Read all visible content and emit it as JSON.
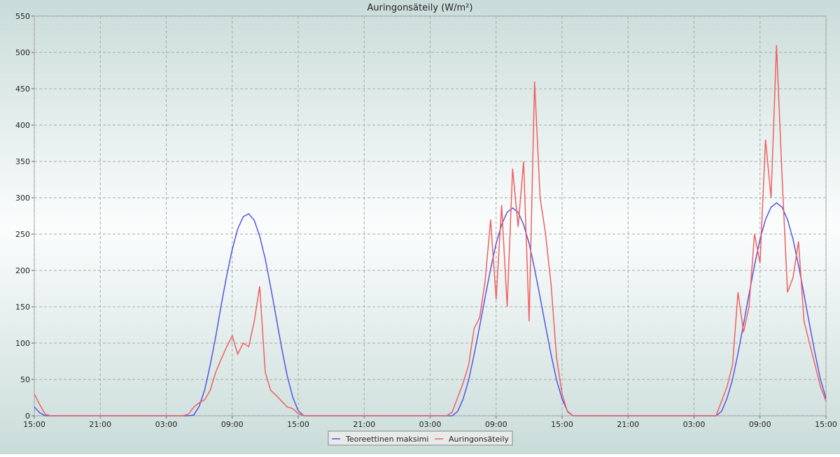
{
  "chart_data": {
    "type": "line",
    "title": "Auringonsäteily (W/m²)",
    "x": [
      0,
      0.5,
      1,
      1.5,
      2,
      2.5,
      3,
      3.5,
      4,
      4.5,
      5,
      5.5,
      6,
      6.5,
      7,
      7.5,
      8,
      8.5,
      9,
      9.5,
      10,
      10.5,
      11,
      11.5,
      12,
      12.5,
      13,
      13.5,
      14,
      14.5,
      15,
      15.5,
      16,
      16.5,
      17,
      17.5,
      18,
      18.5,
      19,
      19.5,
      20,
      20.5,
      21,
      21.5,
      22,
      22.5,
      23,
      23.5,
      24,
      24.5,
      25,
      25.5,
      26,
      26.5,
      27,
      27.5,
      28,
      28.5,
      29,
      29.5,
      30,
      30.5,
      31,
      31.5,
      32,
      32.5,
      33,
      33.5,
      34,
      34.5,
      35,
      35.5,
      36,
      36.5,
      37,
      37.5,
      38,
      38.5,
      39,
      39.5,
      40,
      40.5,
      41,
      41.5,
      42,
      42.5,
      43,
      43.5,
      44,
      44.5,
      45,
      45.5,
      46,
      46.5,
      47,
      47.5,
      48,
      48.5,
      49,
      49.5,
      50,
      50.5,
      51,
      51.5,
      52,
      52.5,
      53,
      53.5,
      54,
      54.5,
      55,
      55.5,
      56,
      56.5,
      57,
      57.5,
      58,
      58.5,
      59,
      59.5,
      60,
      60.5,
      61,
      61.5,
      62,
      62.5,
      63,
      63.5,
      64,
      64.5,
      65,
      65.5,
      66,
      66.5,
      67,
      67.5,
      68,
      68.5,
      69,
      69.5,
      70,
      70.5,
      71,
      71.5,
      72
    ],
    "series": [
      {
        "name": "Teoreettinen maksimi",
        "color": "#5555e0",
        "values": [
          12,
          4,
          0,
          0,
          0,
          0,
          0,
          0,
          0,
          0,
          0,
          0,
          0,
          0,
          0,
          0,
          0,
          0,
          0,
          0,
          0,
          0,
          0,
          0,
          0,
          0,
          0,
          0,
          0,
          1,
          13,
          36,
          70,
          109,
          152,
          193,
          229,
          257,
          274,
          278,
          269,
          247,
          216,
          177,
          135,
          93,
          55,
          26,
          7,
          0,
          0,
          0,
          0,
          0,
          0,
          0,
          0,
          0,
          0,
          0,
          0,
          0,
          0,
          0,
          0,
          0,
          0,
          0,
          0,
          0,
          0,
          0,
          0,
          0,
          0,
          0,
          0,
          6,
          23,
          49,
          84,
          123,
          163,
          202,
          237,
          263,
          280,
          286,
          280,
          263,
          237,
          202,
          163,
          123,
          84,
          49,
          23,
          6,
          0,
          0,
          0,
          0,
          0,
          0,
          0,
          0,
          0,
          0,
          0,
          0,
          0,
          0,
          0,
          0,
          0,
          0,
          0,
          0,
          0,
          0,
          0,
          0,
          0,
          0,
          0,
          6,
          24,
          50,
          86,
          126,
          167,
          207,
          243,
          270,
          287,
          293,
          287,
          270,
          243,
          207,
          167,
          126,
          86,
          50,
          24
        ]
      },
      {
        "name": "Auringonsäteily",
        "color": "#f06060",
        "values": [
          30,
          15,
          2,
          0,
          0,
          0,
          0,
          0,
          0,
          0,
          0,
          0,
          0,
          0,
          0,
          0,
          0,
          0,
          0,
          0,
          0,
          0,
          0,
          0,
          0,
          0,
          0,
          0,
          2,
          12,
          18,
          22,
          35,
          60,
          78,
          95,
          110,
          85,
          100,
          95,
          130,
          178,
          60,
          35,
          28,
          20,
          12,
          10,
          3,
          0,
          0,
          0,
          0,
          0,
          0,
          0,
          0,
          0,
          0,
          0,
          0,
          0,
          0,
          0,
          0,
          0,
          0,
          0,
          0,
          0,
          0,
          0,
          0,
          0,
          0,
          0,
          5,
          25,
          45,
          70,
          120,
          135,
          185,
          270,
          160,
          290,
          150,
          340,
          260,
          350,
          130,
          460,
          300,
          250,
          180,
          80,
          30,
          5,
          0,
          0,
          0,
          0,
          0,
          0,
          0,
          0,
          0,
          0,
          0,
          0,
          0,
          0,
          0,
          0,
          0,
          0,
          0,
          0,
          0,
          0,
          0,
          0,
          0,
          0,
          0,
          20,
          40,
          70,
          170,
          115,
          150,
          250,
          210,
          380,
          300,
          510,
          330,
          170,
          190,
          240,
          130,
          100,
          70,
          40,
          20
        ]
      }
    ],
    "xlim": [
      0,
      72
    ],
    "xticks": [
      {
        "value": 0,
        "label": "15:00"
      },
      {
        "value": 6,
        "label": "21:00"
      },
      {
        "value": 12,
        "label": "03:00"
      },
      {
        "value": 18,
        "label": "09:00"
      },
      {
        "value": 24,
        "label": "15:00"
      },
      {
        "value": 30,
        "label": "21:00"
      },
      {
        "value": 36,
        "label": "03:00"
      },
      {
        "value": 42,
        "label": "09:00"
      },
      {
        "value": 48,
        "label": "15:00"
      },
      {
        "value": 54,
        "label": "21:00"
      },
      {
        "value": 60,
        "label": "03:00"
      },
      {
        "value": 66,
        "label": "09:00"
      },
      {
        "value": 72,
        "label": "15:00"
      }
    ],
    "ylim": [
      0,
      550
    ],
    "yticks": [
      0,
      50,
      100,
      150,
      200,
      250,
      300,
      350,
      400,
      450,
      500,
      550
    ],
    "grid": true
  }
}
